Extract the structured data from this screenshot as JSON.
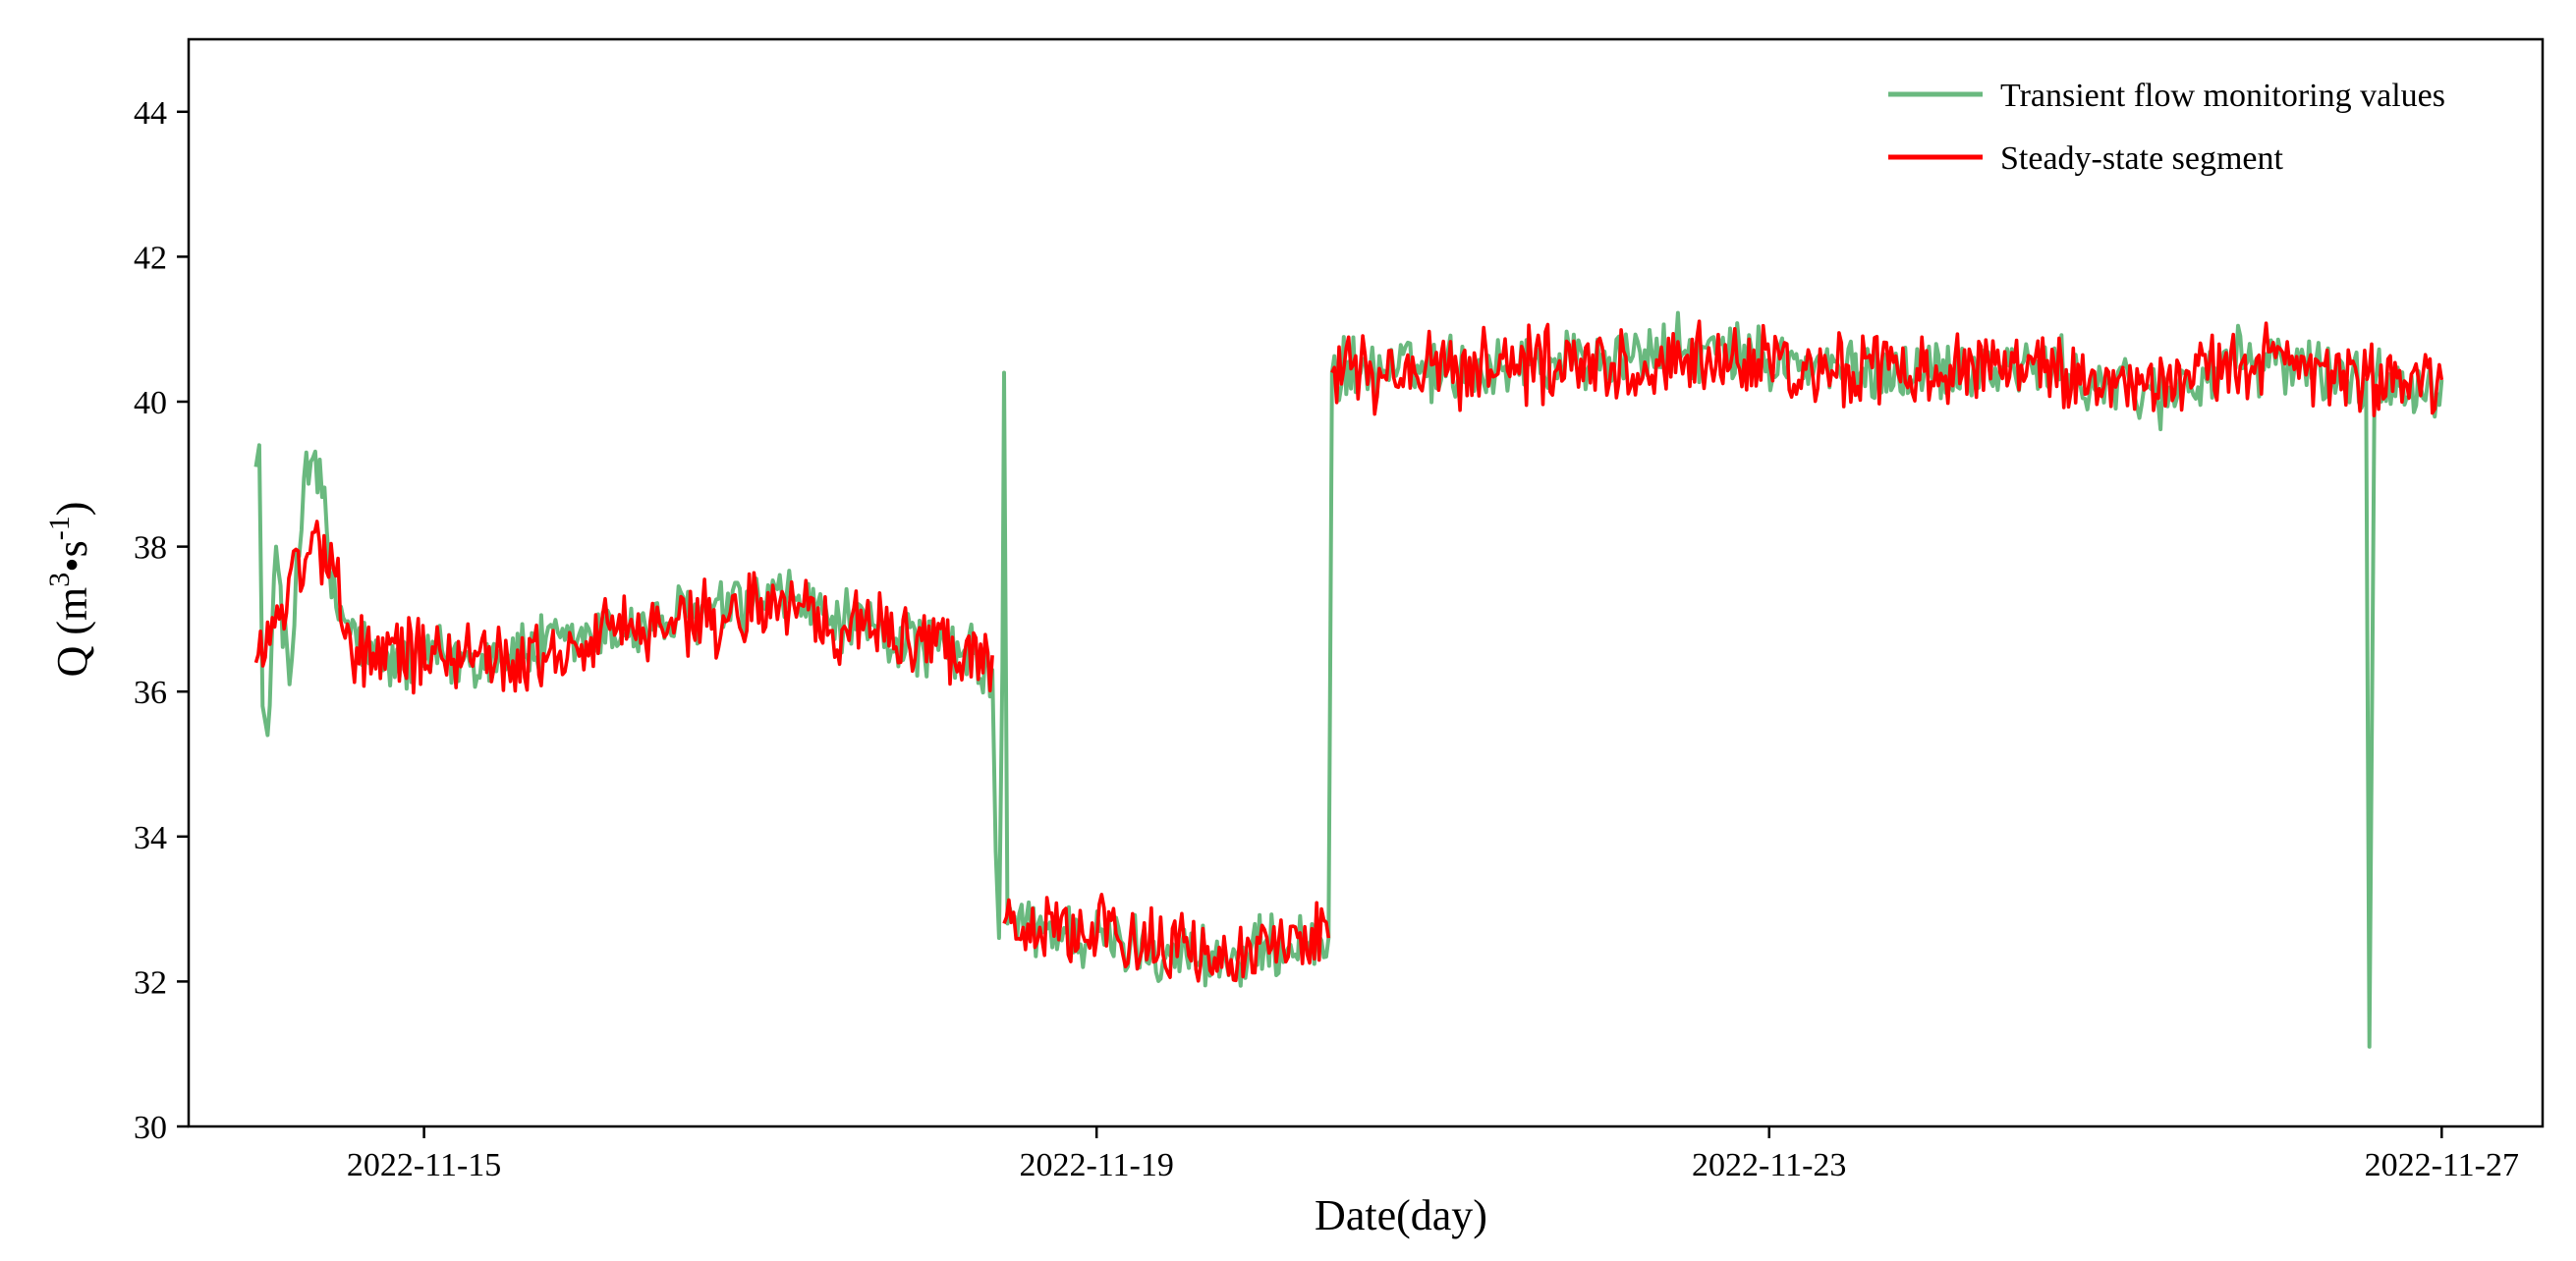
{
  "chart_data": {
    "type": "line",
    "title": "",
    "xlabel": "Date(day)",
    "ylabel": {
      "prefix": "Q (m",
      "sup1": "3",
      "mid": "•s",
      "sup2": "-1",
      "suffix": ")"
    },
    "x_range": [
      "2022-11-13.6",
      "2022-11-27.6"
    ],
    "ylim": [
      30,
      45
    ],
    "x_ticks": [
      "2022-11-15",
      "2022-11-19",
      "2022-11-23",
      "2022-11-27"
    ],
    "y_ticks": [
      30,
      32,
      34,
      36,
      38,
      40,
      42,
      44
    ],
    "grid": false,
    "legend_position": "top-right",
    "series": [
      {
        "name": "Transient flow monitoring values",
        "color": "#6ab97f",
        "keypoints": [
          [
            "2022-11-14.00",
            39.1
          ],
          [
            "2022-11-14.02",
            39.4
          ],
          [
            "2022-11-14.04",
            35.8
          ],
          [
            "2022-11-14.07",
            35.4
          ],
          [
            "2022-11-14.12",
            38.0
          ],
          [
            "2022-11-14.20",
            36.1
          ],
          [
            "2022-11-14.30",
            39.3
          ],
          [
            "2022-11-14.38",
            39.2
          ],
          [
            "2022-11-14.45",
            37.3
          ],
          [
            "2022-11-14.70",
            36.4
          ],
          [
            "2022-11-15.50",
            36.5
          ],
          [
            "2022-11-16.50",
            37.0
          ],
          [
            "2022-11-17.20",
            37.3
          ],
          [
            "2022-11-17.40",
            37.0
          ],
          [
            "2022-11-18.20",
            36.5
          ],
          [
            "2022-11-18.38",
            36.3
          ],
          [
            "2022-11-18.40",
            33.8
          ],
          [
            "2022-11-18.42",
            32.6
          ],
          [
            "2022-11-18.44",
            36.3
          ],
          [
            "2022-11-18.45",
            40.4
          ],
          [
            "2022-11-18.47",
            32.8
          ],
          [
            "2022-11-19.20",
            32.5
          ],
          [
            "2022-11-19.80",
            32.3
          ],
          [
            "2022-11-20.38",
            32.6
          ],
          [
            "2022-11-20.40",
            40.4
          ],
          [
            "2022-11-21.50",
            40.5
          ],
          [
            "2022-11-22.50",
            40.7
          ],
          [
            "2022-11-23.50",
            40.4
          ],
          [
            "2022-11-24.50",
            40.5
          ],
          [
            "2022-11-25.30",
            40.1
          ],
          [
            "2022-11-25.90",
            40.6
          ],
          [
            "2022-11-26.55",
            40.3
          ],
          [
            "2022-11-26.57",
            31.1
          ],
          [
            "2022-11-26.60",
            40.2
          ],
          [
            "2022-11-27.00",
            40.3
          ]
        ]
      },
      {
        "name": "Steady-state segment",
        "color": "#ff0000",
        "segments": [
          [
            [
              "2022-11-14.00",
              36.4
            ],
            [
              "2022-11-14.35",
              38.2
            ],
            [
              "2022-11-14.60",
              36.6
            ],
            [
              "2022-11-15.50",
              36.4
            ],
            [
              "2022-11-16.50",
              37.0
            ],
            [
              "2022-11-17.20",
              37.2
            ],
            [
              "2022-11-17.50",
              36.9
            ],
            [
              "2022-11-18.38",
              36.5
            ]
          ],
          [
            [
              "2022-11-18.45",
              32.8
            ],
            [
              "2022-11-19.20",
              32.6
            ],
            [
              "2022-11-19.80",
              32.3
            ],
            [
              "2022-11-20.38",
              32.6
            ]
          ],
          [
            [
              "2022-11-20.40",
              40.4
            ],
            [
              "2022-11-21.50",
              40.5
            ],
            [
              "2022-11-22.50",
              40.6
            ],
            [
              "2022-11-23.50",
              40.4
            ],
            [
              "2022-11-24.50",
              40.5
            ],
            [
              "2022-11-25.30",
              40.1
            ],
            [
              "2022-11-25.90",
              40.6
            ],
            [
              "2022-11-26.50",
              40.3
            ],
            [
              "2022-11-27.00",
              40.3
            ]
          ]
        ]
      }
    ]
  }
}
